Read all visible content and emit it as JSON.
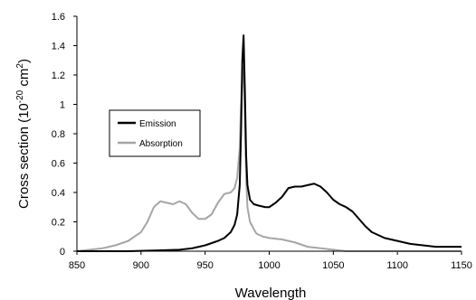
{
  "chart_data": {
    "type": "line",
    "xlabel": "Wavelength",
    "ylabel_parts": [
      "Cross section (10",
      "-20",
      " cm",
      "2",
      ")"
    ],
    "xlim": [
      850,
      1150
    ],
    "ylim": [
      0,
      1.6
    ],
    "xticks": [
      850,
      900,
      950,
      1000,
      1050,
      1100,
      1150
    ],
    "yticks": [
      0,
      0.2,
      0.4,
      0.6,
      0.8,
      1,
      1.2,
      1.4,
      1.6
    ],
    "xtick_labels": [
      "850",
      "900",
      "950",
      "1000",
      "1050",
      "1100",
      "1150"
    ],
    "ytick_labels": [
      "0",
      "0.2",
      "0.4",
      "0.6",
      "0.8",
      "1",
      "1.2",
      "1.4",
      "1.6"
    ],
    "grid": false,
    "legend": {
      "placement": "left-middle",
      "entries": [
        "Emission",
        "Absorption"
      ]
    },
    "series": [
      {
        "name": "Emission",
        "color": "#000000",
        "x": [
          850,
          870,
          890,
          910,
          930,
          940,
          950,
          960,
          965,
          970,
          973,
          975,
          977,
          978,
          979,
          980,
          981,
          982,
          983,
          985,
          988,
          992,
          997,
          1000,
          1005,
          1010,
          1015,
          1020,
          1025,
          1030,
          1035,
          1040,
          1045,
          1050,
          1055,
          1060,
          1065,
          1070,
          1075,
          1080,
          1090,
          1100,
          1110,
          1120,
          1130,
          1140,
          1150
        ],
        "y": [
          0.0,
          0.0,
          0.0,
          0.005,
          0.01,
          0.02,
          0.04,
          0.07,
          0.09,
          0.13,
          0.18,
          0.25,
          0.45,
          0.8,
          1.3,
          1.47,
          1.1,
          0.65,
          0.45,
          0.35,
          0.32,
          0.31,
          0.3,
          0.3,
          0.33,
          0.37,
          0.43,
          0.44,
          0.44,
          0.45,
          0.46,
          0.44,
          0.4,
          0.35,
          0.32,
          0.3,
          0.27,
          0.22,
          0.17,
          0.13,
          0.09,
          0.07,
          0.05,
          0.04,
          0.03,
          0.03,
          0.03
        ]
      },
      {
        "name": "Absorption",
        "color": "#a6a6a6",
        "x": [
          850,
          860,
          870,
          880,
          890,
          900,
          905,
          910,
          915,
          920,
          925,
          930,
          935,
          940,
          945,
          950,
          955,
          960,
          965,
          970,
          973,
          975,
          977,
          978,
          979,
          980,
          981,
          982,
          983,
          985,
          988,
          990,
          995,
          1000,
          1010,
          1020,
          1030,
          1040,
          1050,
          1060,
          1080,
          1100,
          1150
        ],
        "y": [
          0.0,
          0.01,
          0.02,
          0.04,
          0.07,
          0.13,
          0.2,
          0.3,
          0.34,
          0.33,
          0.32,
          0.34,
          0.32,
          0.26,
          0.22,
          0.22,
          0.25,
          0.33,
          0.39,
          0.4,
          0.43,
          0.5,
          0.7,
          1.0,
          1.2,
          1.25,
          0.9,
          0.5,
          0.3,
          0.2,
          0.15,
          0.12,
          0.1,
          0.09,
          0.08,
          0.06,
          0.03,
          0.02,
          0.01,
          0.0,
          0.0,
          0.0,
          0.0
        ]
      }
    ]
  }
}
